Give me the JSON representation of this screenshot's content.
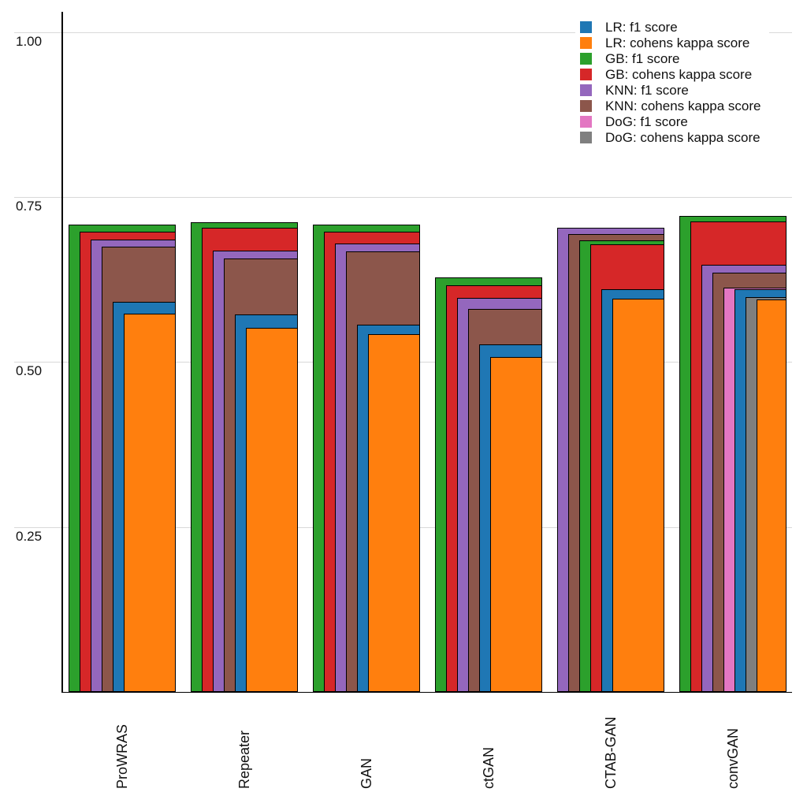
{
  "chart_data": {
    "type": "bar",
    "variant": "nested-overlapping-bars",
    "title": "",
    "xlabel": "",
    "ylabel": "",
    "categories": [
      "ProWRAS",
      "Repeater",
      "GAN",
      "ctGAN",
      "CTAB-GAN",
      "convGAN"
    ],
    "series": [
      {
        "name": "LR: f1 score",
        "color": "#1f77b4",
        "values": [
          0.591,
          0.572,
          0.557,
          0.527,
          0.61,
          0.61
        ]
      },
      {
        "name": "LR: cohens kappa score",
        "color": "#ff7f0e",
        "values": [
          0.573,
          0.552,
          0.542,
          0.508,
          0.596,
          0.595
        ]
      },
      {
        "name": "GB: f1 score",
        "color": "#2ca02c",
        "values": [
          0.708,
          0.712,
          0.708,
          0.628,
          0.685,
          0.722
        ]
      },
      {
        "name": "GB: cohens kappa score",
        "color": "#d62728",
        "values": [
          0.698,
          0.703,
          0.698,
          0.616,
          0.679,
          0.713
        ]
      },
      {
        "name": "KNN: f1 score",
        "color": "#9467bd",
        "values": [
          0.686,
          0.669,
          0.68,
          0.597,
          0.704,
          0.648
        ]
      },
      {
        "name": "KNN: cohens kappa score",
        "color": "#8c564b",
        "values": [
          0.675,
          0.657,
          0.668,
          0.581,
          0.694,
          0.636
        ]
      },
      {
        "name": "DoG: f1 score",
        "color": "#e377c2",
        "values": [
          null,
          null,
          null,
          null,
          null,
          0.613
        ]
      },
      {
        "name": "DoG: cohens kappa score",
        "color": "#7f7f7f",
        "values": [
          null,
          null,
          null,
          null,
          null,
          0.598
        ]
      }
    ],
    "ylim": [
      0,
      1.03
    ],
    "ytick_labels": [
      "0.25",
      "0.50",
      "0.75",
      "1.00"
    ],
    "ytick_values": [
      0.25,
      0.5,
      0.75,
      1.0
    ],
    "grid": "horizontal",
    "legend_position": "top-right",
    "bar_ordering": "per-category sorted tallest-first, nested with shared right edge, black bar outlines"
  }
}
